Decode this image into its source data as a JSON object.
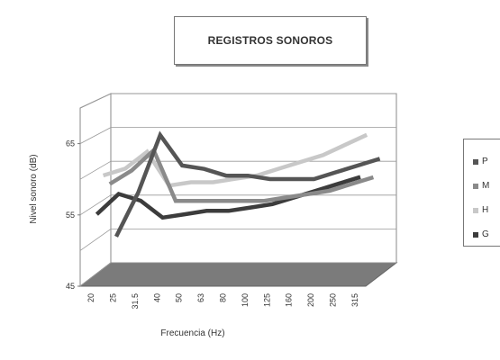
{
  "chart_data": {
    "type": "line",
    "title": "REGISTROS SONOROS",
    "xlabel": "Frecuencia (Hz)",
    "ylabel": "Nivel sonoro (dB)",
    "categories": [
      "20",
      "25",
      "31.5",
      "40",
      "50",
      "63",
      "80",
      "100",
      "125",
      "160",
      "200",
      "250",
      "315"
    ],
    "y_ticks": [
      "45",
      "55",
      "65"
    ],
    "ylim": [
      45,
      70
    ],
    "grid": true,
    "legend_position": "right",
    "series": [
      {
        "name": "P",
        "color": "#555555",
        "values": [
          49.5,
          56.0,
          64.5,
          60.0,
          59.5,
          58.5,
          58.5,
          58.0,
          58.0,
          58.0,
          59.0,
          60.0,
          61.0
        ]
      },
      {
        "name": "M",
        "color": "#8a8a8a",
        "values": [
          58.0,
          60.0,
          63.0,
          55.5,
          55.5,
          55.5,
          55.5,
          55.5,
          56.0,
          56.5,
          57.0,
          58.0,
          59.0
        ]
      },
      {
        "name": "H",
        "color": "#c8c8c8",
        "values": [
          60.0,
          61.0,
          63.5,
          58.5,
          59.0,
          59.0,
          59.5,
          60.0,
          61.0,
          62.0,
          63.0,
          64.5,
          66.0
        ]
      },
      {
        "name": "G",
        "color": "#3c3c3c",
        "values": [
          55.0,
          58.0,
          57.0,
          54.5,
          55.0,
          55.5,
          55.5,
          56.0,
          56.5,
          57.5,
          58.5,
          59.5,
          60.5
        ]
      }
    ]
  }
}
